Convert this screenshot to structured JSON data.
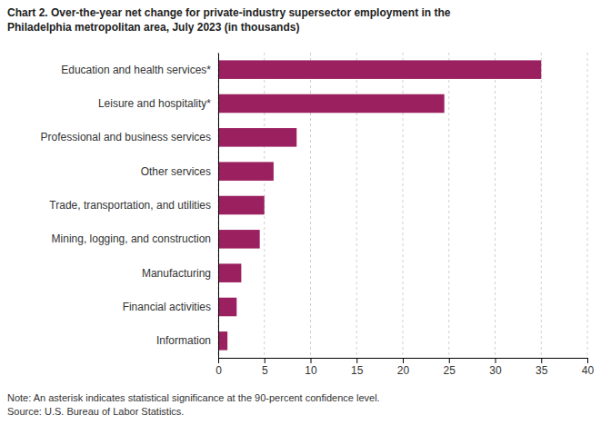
{
  "chart_data": {
    "type": "bar",
    "orientation": "horizontal",
    "title": "Chart 2. Over-the-year net change for private-industry supersector employment in the",
    "subtitle": "Philadelphia metropolitan area, July 2023 (in thousands)",
    "categories": [
      "Information",
      "Financial activities",
      "Manufacturing",
      "Mining, logging, and construction",
      "Trade, transportation, and utilities",
      "Other services",
      "Professional and business services",
      "Leisure and hospitality*",
      "Education and health services*"
    ],
    "values": [
      1.0,
      2.0,
      2.5,
      4.5,
      5.0,
      6.0,
      8.5,
      24.5,
      35.0
    ],
    "color": "#9b2060",
    "xlim": [
      0,
      40
    ],
    "xticks": [
      0,
      5,
      10,
      15,
      20,
      25,
      30,
      35,
      40
    ],
    "grid": true,
    "annotations": [
      "Note: An asterisk indicates statistical significance at the 90-percent confidence level.",
      "Source: U.S. Bureau of Labor Statistics."
    ]
  }
}
